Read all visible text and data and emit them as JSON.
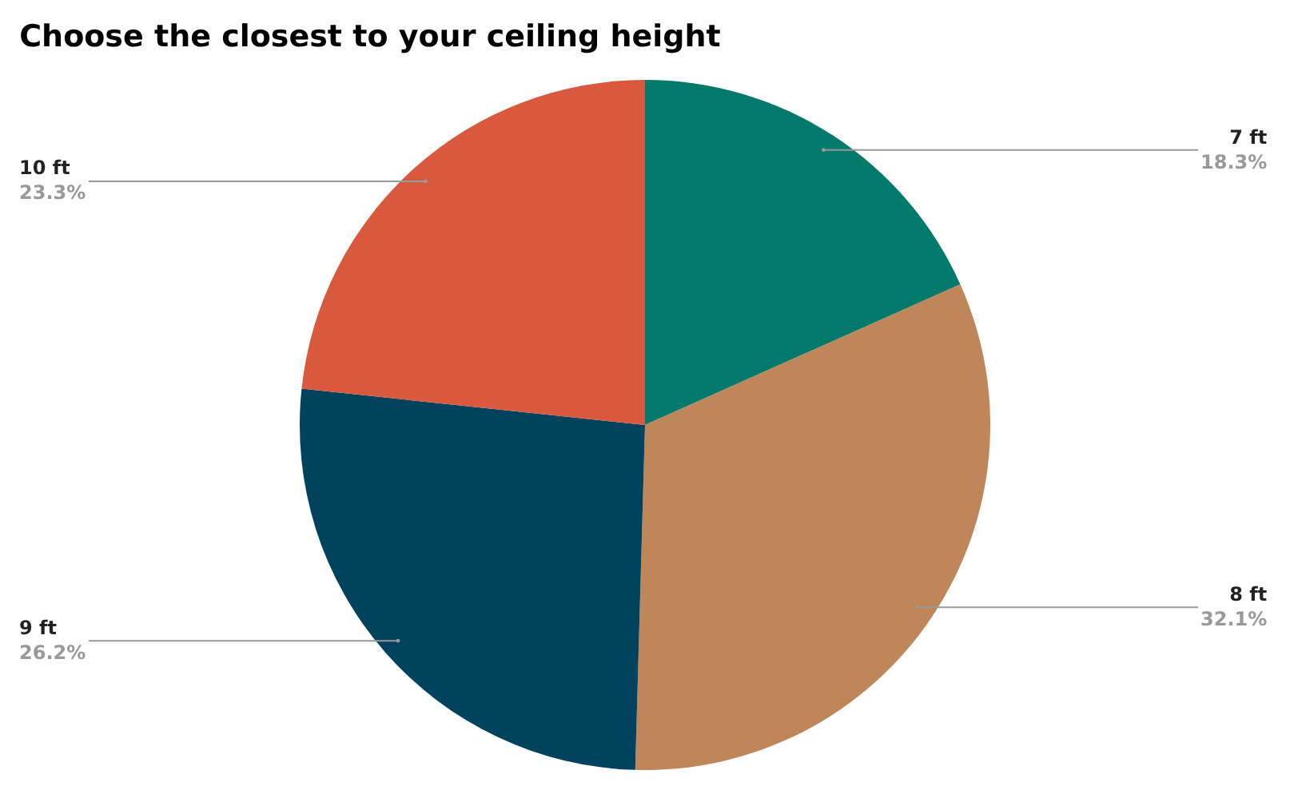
{
  "chart_data": {
    "type": "pie",
    "title": "Choose the closest to your ceiling height",
    "categories": [
      "7 ft",
      "8 ft",
      "9 ft",
      "10 ft"
    ],
    "values": [
      18.3,
      32.1,
      26.2,
      23.3
    ],
    "colors": [
      "#017a6b",
      "#be8659",
      "#01425e",
      "#d9593e"
    ],
    "value_labels": [
      "18.3%",
      "32.1%",
      "26.2%",
      "23.3%"
    ],
    "legend": false
  }
}
